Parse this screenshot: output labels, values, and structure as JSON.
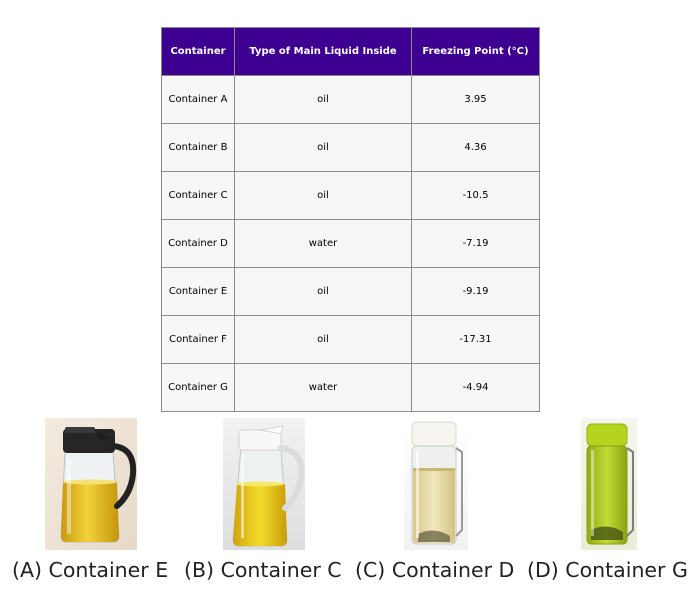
{
  "table": {
    "headers": [
      "Container",
      "Type of Main Liquid Inside",
      "Freezing Point (°C)"
    ],
    "rows": [
      {
        "container": "Container A",
        "liquid": "oil",
        "freezing_point": "3.95"
      },
      {
        "container": "Container B",
        "liquid": "oil",
        "freezing_point": "4.36"
      },
      {
        "container": "Container C",
        "liquid": "oil",
        "freezing_point": "-10.5"
      },
      {
        "container": "Container D",
        "liquid": "water",
        "freezing_point": "-7.19"
      },
      {
        "container": "Container E",
        "liquid": "oil",
        "freezing_point": "-9.19"
      },
      {
        "container": "Container F",
        "liquid": "oil",
        "freezing_point": "-17.31"
      },
      {
        "container": "Container G",
        "liquid": "water",
        "freezing_point": "-4.94"
      }
    ],
    "header_color": "#3d0090"
  },
  "images": [
    {
      "icon": "oil-dispenser-black-lid-icon",
      "liquid_color": "#e6c21a"
    },
    {
      "icon": "oil-dispenser-white-lid-icon",
      "liquid_color": "#e8c71a"
    },
    {
      "icon": "bottle-white-cap-strap-icon",
      "liquid_color": "#ecdfae"
    },
    {
      "icon": "bottle-green-icon",
      "liquid_color": "#b7d02a"
    }
  ],
  "choices": [
    "(A) Container E",
    "(B) Container C",
    "(C) Container D",
    "(D) Container G"
  ]
}
